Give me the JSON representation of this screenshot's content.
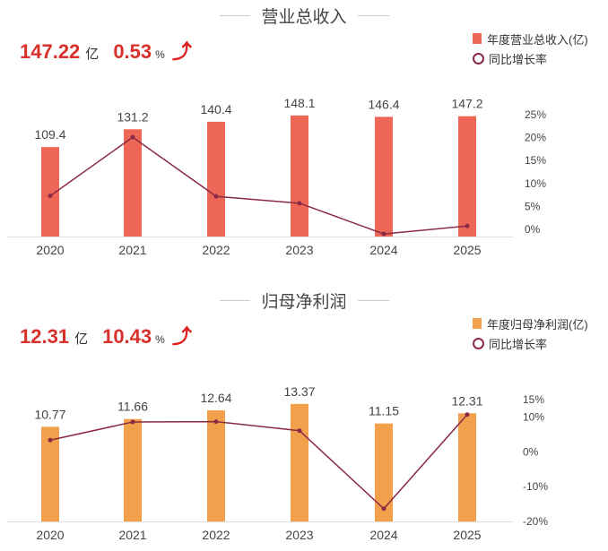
{
  "panels": [
    {
      "title": "营业总收入",
      "kpi": {
        "value": "147.22",
        "unit": "亿",
        "change": "0.53",
        "change_unit": "%",
        "direction": "up"
      },
      "legend": {
        "bar": "年度营业总收入(亿)",
        "line": "同比增长率"
      },
      "colors": {
        "bar": "#ee6656",
        "line": "#8b2a44",
        "kpi": "#d8312b"
      }
    },
    {
      "title": "归母净利润",
      "kpi": {
        "value": "12.31",
        "unit": "亿",
        "change": "10.43",
        "change_unit": "%",
        "direction": "up"
      },
      "legend": {
        "bar": "年度归母净利润(亿)",
        "line": "同比增长率"
      },
      "colors": {
        "bar": "#f2a04c",
        "line": "#8b2a44",
        "kpi": "#d8312b"
      }
    }
  ],
  "chart_data": [
    {
      "type": "bar+line",
      "title": "营业总收入",
      "categories": [
        "2020",
        "2021",
        "2022",
        "2023",
        "2024",
        "2025"
      ],
      "series": [
        {
          "name": "年度营业总收入(亿)",
          "type": "bar",
          "axis": "left",
          "values": [
            109.4,
            131.2,
            140.4,
            148.1,
            146.4,
            147.2
          ],
          "labels": [
            "109.4",
            "131.2",
            "140.4",
            "148.1",
            "146.4",
            "147.2"
          ]
        },
        {
          "name": "同比增长率",
          "type": "line",
          "axis": "right",
          "values": [
            7.1,
            19.9,
            7.0,
            5.5,
            -1.2,
            0.53
          ]
        }
      ],
      "right_axis": {
        "ticks": [
          "25%",
          "20%",
          "15%",
          "10%",
          "5%",
          "0%"
        ],
        "tick_values": [
          25,
          20,
          15,
          10,
          5,
          0
        ],
        "range": [
          -2,
          27
        ]
      },
      "left_range": [
        0,
        160
      ],
      "grid": false,
      "legend_position": "top-right"
    },
    {
      "type": "bar+line",
      "title": "归母净利润",
      "categories": [
        "2020",
        "2021",
        "2022",
        "2023",
        "2024",
        "2025"
      ],
      "series": [
        {
          "name": "年度归母净利润(亿)",
          "type": "bar",
          "axis": "left",
          "values": [
            10.77,
            11.66,
            12.64,
            13.37,
            11.15,
            12.31
          ],
          "labels": [
            "10.77",
            "11.66",
            "12.64",
            "13.37",
            "11.15",
            "12.31"
          ]
        },
        {
          "name": "同比增长率",
          "type": "line",
          "axis": "right",
          "values": [
            3.1,
            8.3,
            8.4,
            5.8,
            -16.6,
            10.43
          ]
        }
      ],
      "right_axis": {
        "ticks": [
          "15%",
          "10%",
          "0%",
          "-10%",
          "-20%"
        ],
        "tick_values": [
          15,
          10,
          0,
          -10,
          -20
        ],
        "range": [
          -20.3,
          16
        ]
      },
      "left_range": [
        0,
        15.5
      ],
      "grid": false,
      "legend_position": "top-right"
    }
  ]
}
